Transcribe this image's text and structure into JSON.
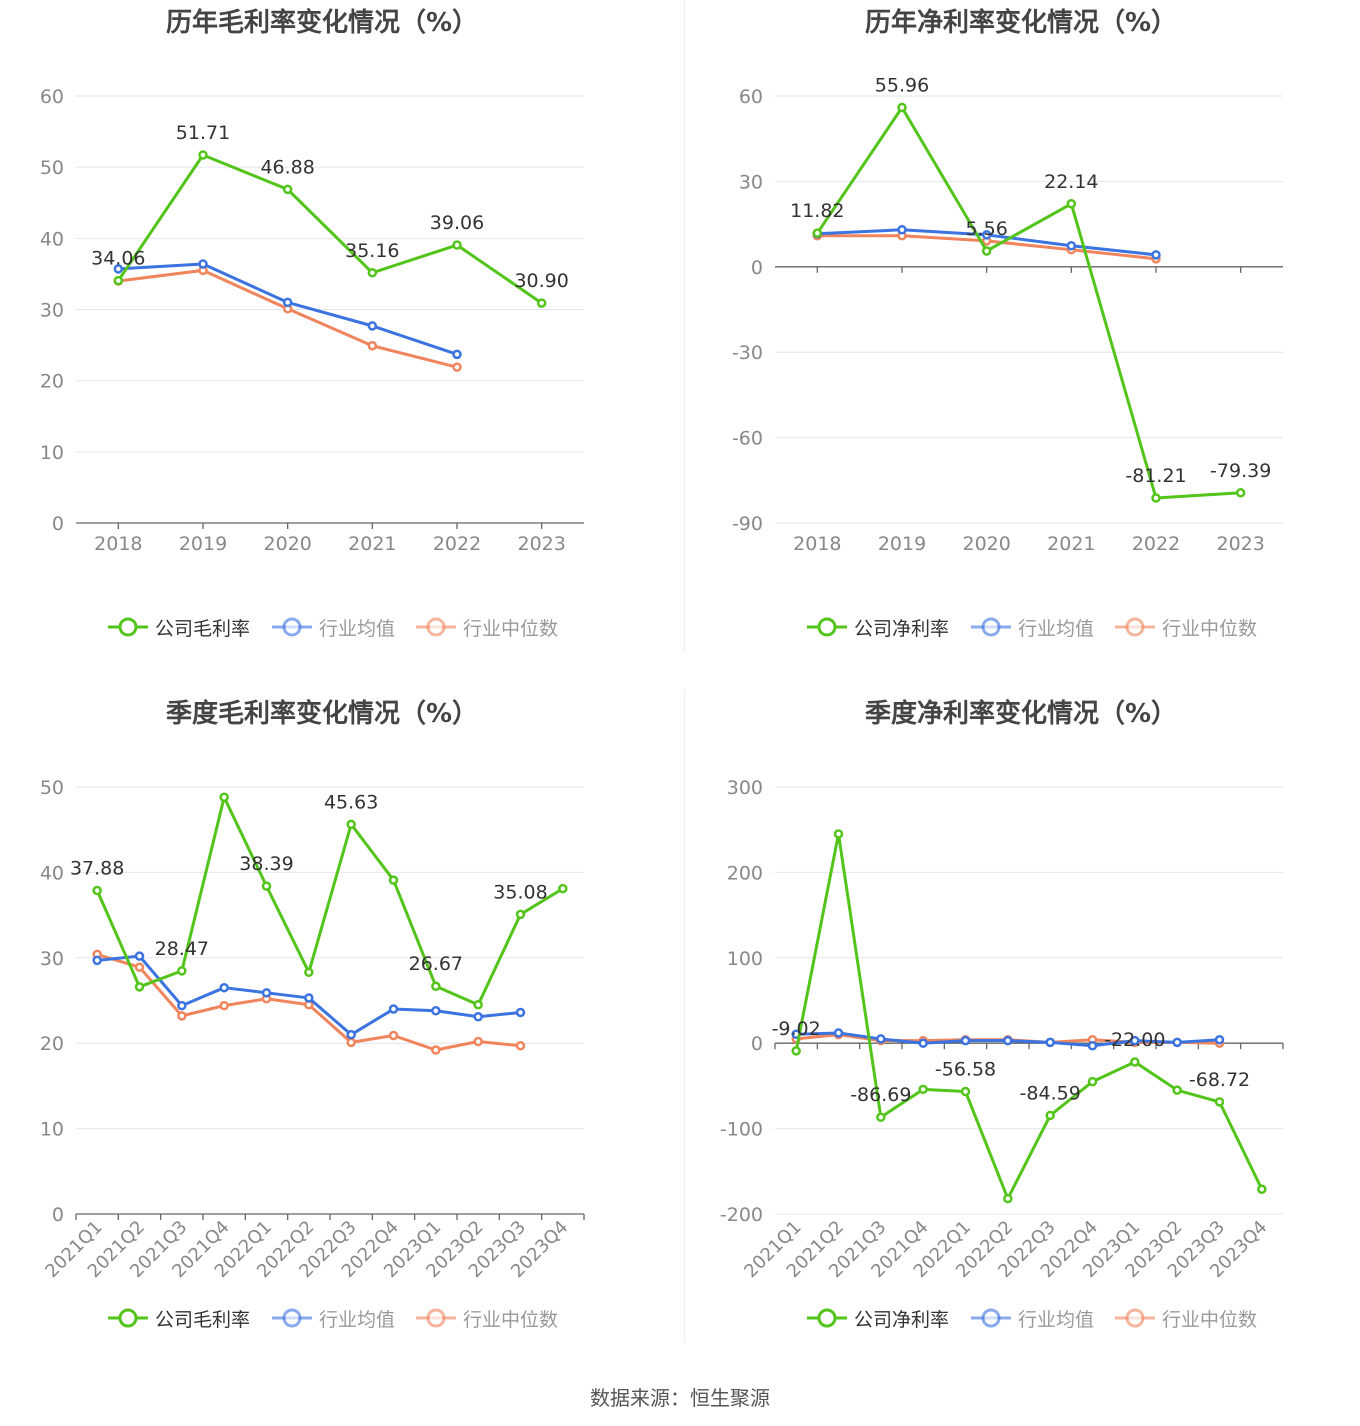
{
  "footer": "数据来源：恒生聚源",
  "colors": {
    "company": "#52c41a",
    "avg": "#3b73e0",
    "median": "#f0845c",
    "grid": "#e3e6ef",
    "axis": "#666",
    "tick_text": "#888"
  },
  "chart_data": [
    {
      "type": "line",
      "title": "历年毛利率变化情况（%）",
      "categories": [
        "2018",
        "2019",
        "2020",
        "2021",
        "2022",
        "2023"
      ],
      "ylim": [
        0,
        60
      ],
      "yticks": [
        0,
        10,
        20,
        30,
        40,
        50,
        60
      ],
      "rotate_x": false,
      "legend_position": "bottom",
      "series": [
        {
          "name": "公司毛利率",
          "key": "company",
          "values": [
            34.06,
            51.71,
            46.88,
            35.16,
            39.06,
            30.9
          ],
          "labeled": [
            true,
            true,
            true,
            true,
            true,
            true
          ]
        },
        {
          "name": "行业均值",
          "key": "avg",
          "values": [
            35.7,
            36.4,
            31.0,
            27.7,
            23.7,
            null
          ]
        },
        {
          "name": "行业中位数",
          "key": "median",
          "values": [
            34.0,
            35.5,
            30.1,
            24.9,
            21.9,
            null
          ]
        }
      ]
    },
    {
      "type": "line",
      "title": "历年净利率变化情况（%）",
      "categories": [
        "2018",
        "2019",
        "2020",
        "2021",
        "2022",
        "2023"
      ],
      "ylim": [
        -90,
        60
      ],
      "yticks": [
        -90,
        -60,
        -30,
        0,
        30,
        60
      ],
      "rotate_x": false,
      "legend_position": "bottom",
      "series": [
        {
          "name": "公司净利率",
          "key": "company",
          "values": [
            11.82,
            55.96,
            5.56,
            22.14,
            -81.21,
            -79.39
          ],
          "labeled": [
            true,
            true,
            true,
            true,
            true,
            true
          ]
        },
        {
          "name": "行业均值",
          "key": "avg",
          "values": [
            11.6,
            13.0,
            11.2,
            7.4,
            4.2,
            null
          ]
        },
        {
          "name": "行业中位数",
          "key": "median",
          "values": [
            10.9,
            10.9,
            9.1,
            6.0,
            2.8,
            null
          ]
        }
      ]
    },
    {
      "type": "line",
      "title": "季度毛利率变化情况（%）",
      "categories": [
        "2021Q1",
        "2021Q2",
        "2021Q3",
        "2021Q4",
        "2022Q1",
        "2022Q2",
        "2022Q3",
        "2022Q4",
        "2023Q1",
        "2023Q2",
        "2023Q3",
        "2023Q4"
      ],
      "ylim": [
        0,
        50
      ],
      "yticks": [
        0,
        10,
        20,
        30,
        40,
        50
      ],
      "rotate_x": true,
      "legend_position": "bottom",
      "series": [
        {
          "name": "公司毛利率",
          "key": "company",
          "values": [
            37.88,
            26.6,
            28.47,
            48.8,
            38.39,
            28.3,
            45.63,
            39.1,
            26.67,
            24.5,
            35.08,
            38.1
          ],
          "labeled": [
            true,
            false,
            true,
            false,
            true,
            false,
            true,
            false,
            true,
            false,
            true,
            false
          ]
        },
        {
          "name": "行业均值",
          "key": "avg",
          "values": [
            29.7,
            30.2,
            24.4,
            26.5,
            25.9,
            25.3,
            21.0,
            24.0,
            23.8,
            23.1,
            23.6,
            null
          ]
        },
        {
          "name": "行业中位数",
          "key": "median",
          "values": [
            30.4,
            28.9,
            23.2,
            24.4,
            25.2,
            24.5,
            20.1,
            20.9,
            19.2,
            20.2,
            19.7,
            null
          ]
        }
      ]
    },
    {
      "type": "line",
      "title": "季度净利率变化情况（%）",
      "categories": [
        "2021Q1",
        "2021Q2",
        "2021Q3",
        "2021Q4",
        "2022Q1",
        "2022Q2",
        "2022Q3",
        "2022Q4",
        "2023Q1",
        "2023Q2",
        "2023Q3",
        "2023Q4"
      ],
      "ylim": [
        -200,
        300
      ],
      "yticks": [
        -200,
        -100,
        0,
        100,
        200,
        300
      ],
      "rotate_x": true,
      "legend_position": "bottom",
      "series": [
        {
          "name": "公司净利率",
          "key": "company",
          "values": [
            -9.02,
            245,
            -86.69,
            -54,
            -56.58,
            -182,
            -84.59,
            -45,
            -22.0,
            -55,
            -68.72,
            -171
          ],
          "labeled": [
            true,
            false,
            true,
            false,
            true,
            false,
            true,
            false,
            true,
            false,
            true,
            false
          ]
        },
        {
          "name": "行业均值",
          "key": "avg",
          "values": [
            10.5,
            12,
            5,
            0,
            3,
            3,
            1,
            -3,
            3,
            1,
            4,
            null
          ]
        },
        {
          "name": "行业中位数",
          "key": "median",
          "values": [
            5,
            10,
            3,
            3,
            4,
            4,
            1,
            4,
            1,
            1,
            0,
            null
          ]
        }
      ]
    }
  ]
}
